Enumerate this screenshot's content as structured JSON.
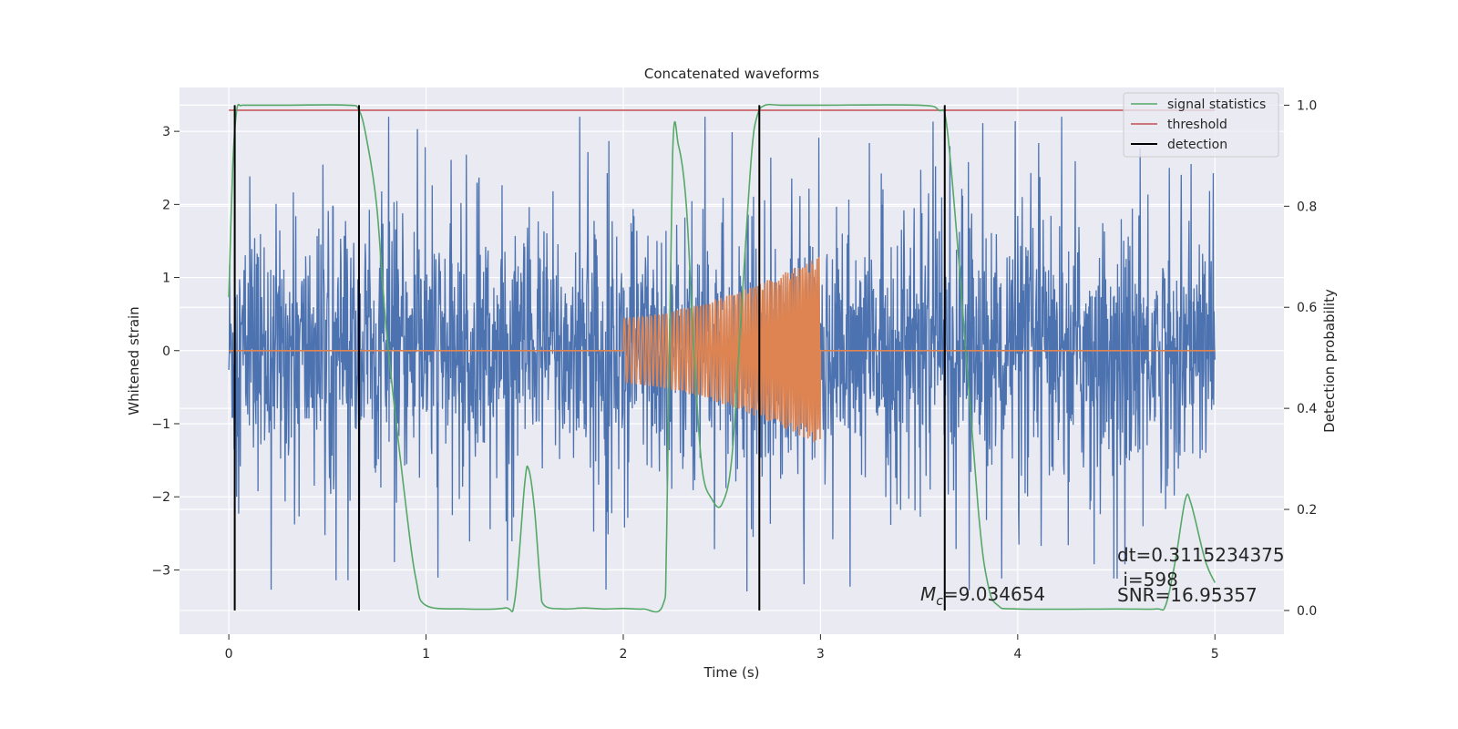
{
  "chart_data": {
    "type": "line",
    "title": "Concatenated waveforms",
    "xlabel": "Time (s)",
    "ylabel_left": "Whitened strain",
    "ylabel_right": "Detection probability",
    "xlim": [
      -0.25,
      5.35
    ],
    "ylim_left": [
      -3.88,
      3.6
    ],
    "ylim_right": [
      -0.047,
      1.035
    ],
    "x_ticks": [
      0,
      1,
      2,
      3,
      4,
      5
    ],
    "y_left_ticks": [
      -3,
      -2,
      -1,
      0,
      1,
      2,
      3
    ],
    "y_right_ticks": [
      0.0,
      0.2,
      0.4,
      0.6,
      0.8,
      1.0
    ],
    "y_right_tick_labels": [
      "0.0",
      "0.2",
      "0.4",
      "0.6",
      "0.8",
      "1.0"
    ],
    "grid": true,
    "legend_position": "top-right",
    "legend": [
      "signal statistics",
      "threshold",
      "detection"
    ],
    "series": [
      {
        "name": "strain",
        "axis": "left",
        "color": "#4c72b0",
        "x_range": [
          0,
          5
        ],
        "samples": 2400,
        "envelope_abs": 3.2
      },
      {
        "name": "chirp",
        "axis": "left",
        "color": "#dd8452",
        "x_range": [
          0,
          5
        ],
        "chirp_start": 2.0,
        "chirp_end": 3.0,
        "amplitude_start": 0.45,
        "amplitude_end": 1.3
      },
      {
        "name": "signal statistics",
        "axis": "right",
        "color": "#55a868",
        "x": [
          0.0,
          0.02,
          0.04,
          0.06,
          0.08,
          0.1,
          0.3,
          0.6,
          0.66,
          0.7,
          0.75,
          0.8,
          0.9,
          0.95,
          1.0,
          1.2,
          1.4,
          1.45,
          1.5,
          1.52,
          1.55,
          1.58,
          1.6,
          1.7,
          1.8,
          1.9,
          2.0,
          2.1,
          2.2,
          2.22,
          2.25,
          2.28,
          2.32,
          2.36,
          2.4,
          2.45,
          2.5,
          2.55,
          2.6,
          2.65,
          2.68,
          2.72,
          2.8,
          3.0,
          3.5,
          3.6,
          3.64,
          3.7,
          3.8,
          3.85,
          3.9,
          4.0,
          4.5,
          4.7,
          4.75,
          4.8,
          4.85,
          4.88,
          4.95,
          5.0
        ],
        "y": [
          0.62,
          0.88,
          0.99,
          0.999,
          1.0,
          1.0,
          1.0,
          1.0,
          0.99,
          0.93,
          0.8,
          0.55,
          0.2,
          0.06,
          0.01,
          0.003,
          0.005,
          0.02,
          0.25,
          0.28,
          0.2,
          0.05,
          0.01,
          0.003,
          0.005,
          0.003,
          0.004,
          0.003,
          0.01,
          0.15,
          0.9,
          0.92,
          0.8,
          0.5,
          0.28,
          0.22,
          0.21,
          0.3,
          0.6,
          0.9,
          0.98,
          1.0,
          1.0,
          1.0,
          1.0,
          0.99,
          0.96,
          0.7,
          0.2,
          0.05,
          0.01,
          0.003,
          0.003,
          0.003,
          0.01,
          0.1,
          0.22,
          0.21,
          0.1,
          0.055
        ]
      },
      {
        "name": "threshold",
        "axis": "right",
        "color": "#c44e52",
        "x": [
          0,
          5
        ],
        "y": [
          0.99,
          0.99
        ]
      },
      {
        "name": "detection",
        "axis": "right",
        "color": "#000000",
        "x": [
          0.03,
          0.66,
          2.69,
          3.63
        ],
        "y_min": 0.0,
        "y_max": 1.0
      }
    ],
    "annotations": [
      {
        "text": "dt=0.3115234375",
        "x": 4.5,
        "y": 0.105
      },
      {
        "text": " i=598",
        "x": 4.5,
        "y": 0.06
      },
      {
        "text": "SNR=16.95357",
        "x": 4.5,
        "y": 0.03
      },
      {
        "text": "M",
        "subscript": "c",
        "suffix": "=9.034654",
        "x": 3.5,
        "y": 0.03
      }
    ]
  }
}
